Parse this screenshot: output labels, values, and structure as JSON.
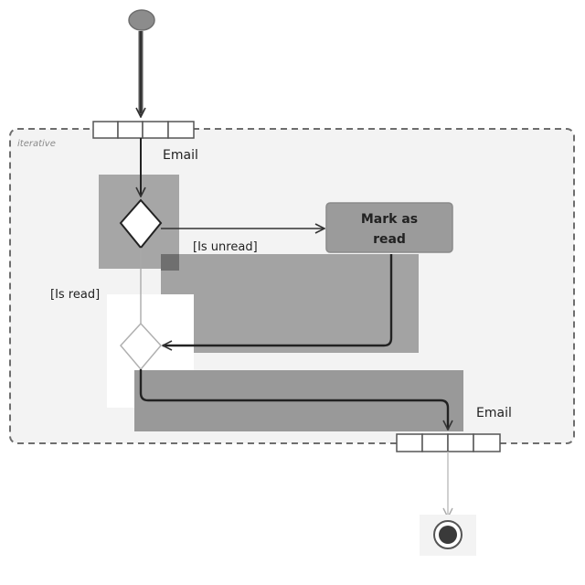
{
  "diagram": {
    "region_label": "iterative",
    "input_pin_label": "Email",
    "output_pin_label": "Email",
    "action_label_line1": "Mark as",
    "action_label_line2": "read",
    "guard_unread": "[Is unread]",
    "guard_read": "[Is read]",
    "colors": {
      "region_fill": "#f3f3f3",
      "region_border": "#6e6e6e",
      "highlight_dark": "#a6a6a6",
      "highlight_mid": "#999999",
      "action_fill": "#9b9b9b",
      "node_fill": "#8c8c8c",
      "edge": "#333333"
    }
  }
}
